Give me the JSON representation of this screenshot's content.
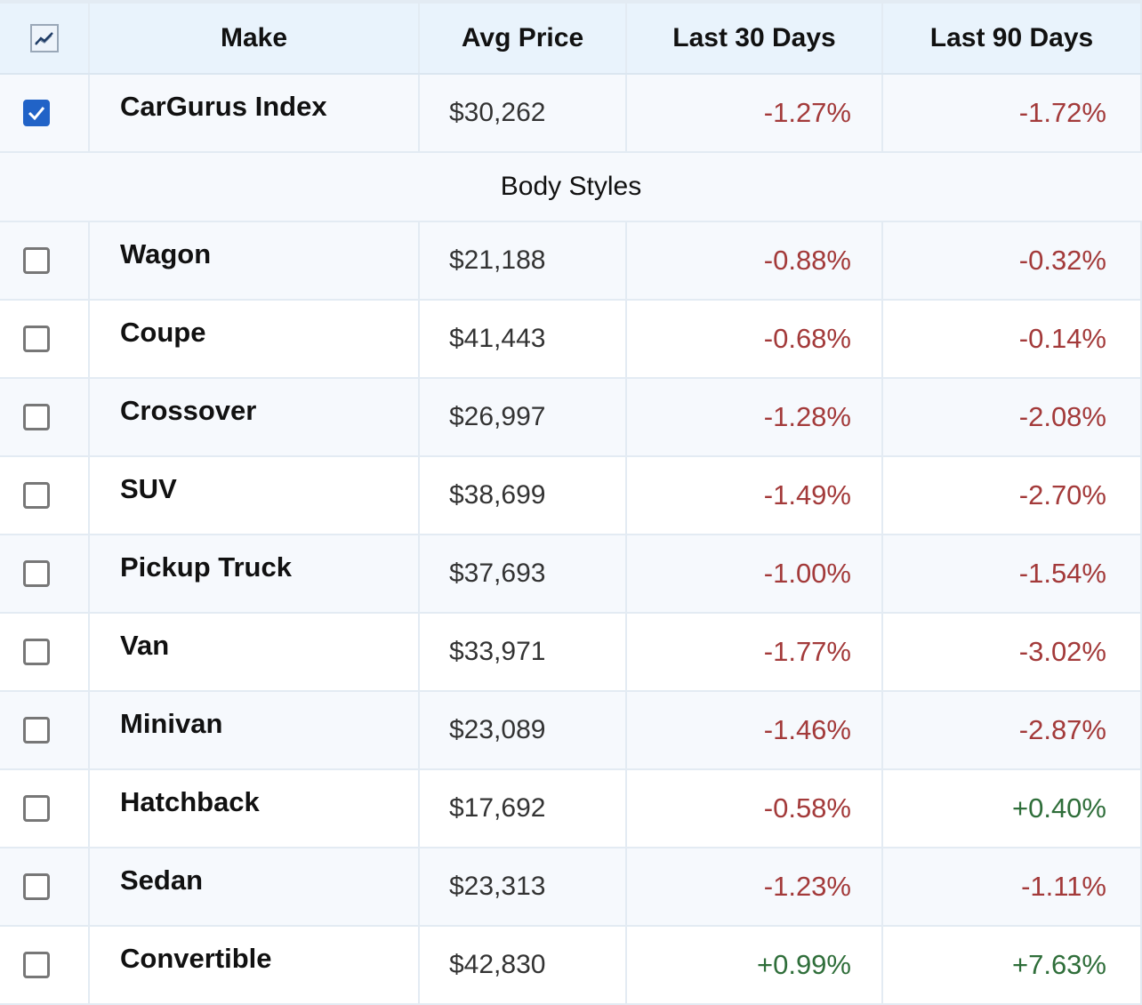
{
  "header": {
    "chart_icon": "line-chart-icon",
    "make": "Make",
    "avg_price": "Avg Price",
    "last30": "Last 30 Days",
    "last90": "Last 90 Days"
  },
  "index_row": {
    "checked": true,
    "make": "CarGurus Index",
    "avg_price": "$30,262",
    "last30": "-1.27%",
    "last90": "-1.72%"
  },
  "section_label": "Body Styles",
  "rows": [
    {
      "make": "Wagon",
      "avg_price": "$21,188",
      "last30": "-0.88%",
      "last90": "-0.32%"
    },
    {
      "make": "Coupe",
      "avg_price": "$41,443",
      "last30": "-0.68%",
      "last90": "-0.14%"
    },
    {
      "make": "Crossover",
      "avg_price": "$26,997",
      "last30": "-1.28%",
      "last90": "-2.08%"
    },
    {
      "make": "SUV",
      "avg_price": "$38,699",
      "last30": "-1.49%",
      "last90": "-2.70%"
    },
    {
      "make": "Pickup Truck",
      "avg_price": "$37,693",
      "last30": "-1.00%",
      "last90": "-1.54%"
    },
    {
      "make": "Van",
      "avg_price": "$33,971",
      "last30": "-1.77%",
      "last90": "-3.02%"
    },
    {
      "make": "Minivan",
      "avg_price": "$23,089",
      "last30": "-1.46%",
      "last90": "-2.87%"
    },
    {
      "make": "Hatchback",
      "avg_price": "$17,692",
      "last30": "-0.58%",
      "last90": "+0.40%"
    },
    {
      "make": "Sedan",
      "avg_price": "$23,313",
      "last30": "-1.23%",
      "last90": "-1.11%"
    },
    {
      "make": "Convertible",
      "avg_price": "$42,830",
      "last30": "+0.99%",
      "last90": "+7.63%"
    }
  ],
  "colors": {
    "negative": "#a33a3a",
    "positive": "#2f6e3a",
    "checkbox_checked": "#2163c7",
    "header_bg": "#e9f3fc"
  }
}
